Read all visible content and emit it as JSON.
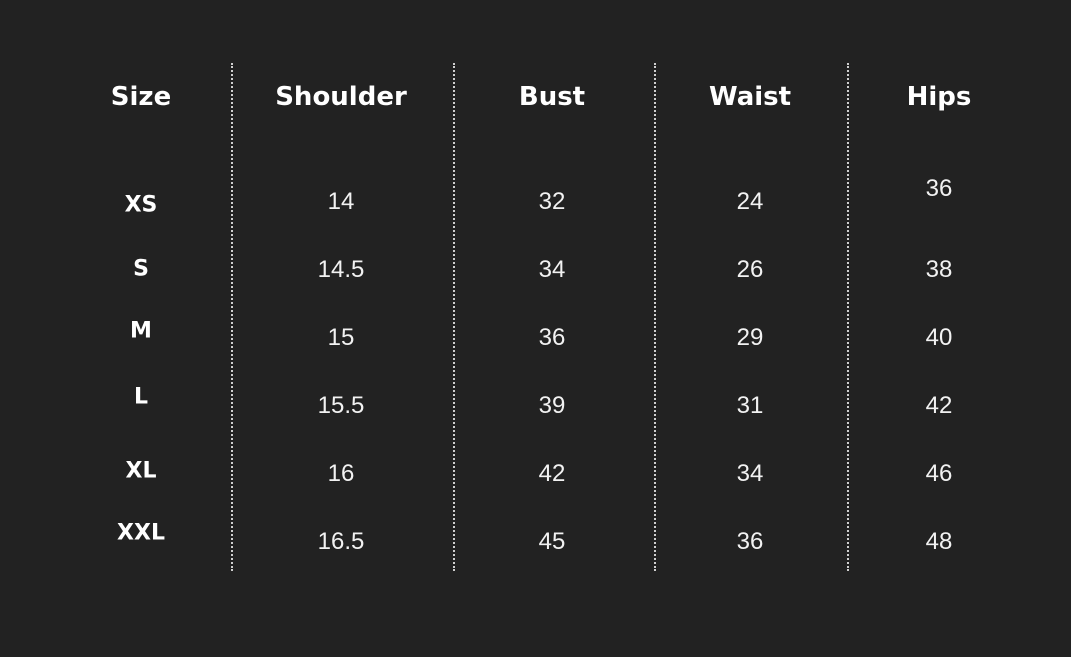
{
  "table": {
    "headers": [
      "Size",
      "Shoulder",
      "Bust",
      "Waist",
      "Hips"
    ],
    "rows": [
      [
        "XS",
        "14",
        "32",
        "24",
        "36"
      ],
      [
        "S",
        "14.5",
        "34",
        "26",
        "38"
      ],
      [
        "M",
        "15",
        "36",
        "29",
        "40"
      ],
      [
        "L",
        "15.5",
        "39",
        "31",
        "42"
      ],
      [
        "XL",
        "16",
        "42",
        "34",
        "46"
      ],
      [
        "XXL",
        "16.5",
        "45",
        "36",
        "48"
      ]
    ]
  },
  "colors": {
    "background": "#222222",
    "text": "#ffffff",
    "divider": "#cfcfcf"
  }
}
